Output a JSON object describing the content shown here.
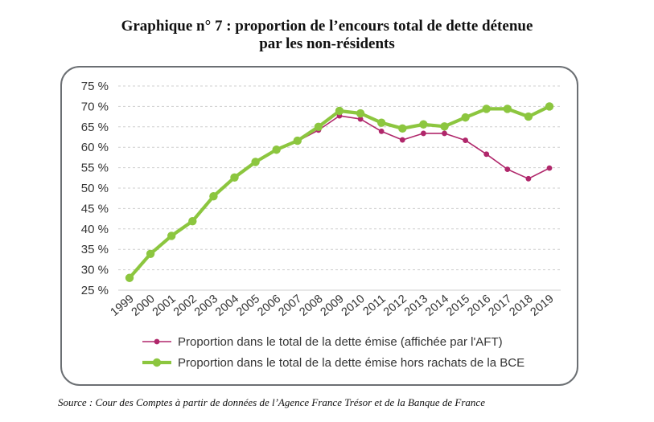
{
  "title_line1": "Graphique n° 7 : proportion de l’encours total de dette détenue",
  "title_line2": "par les non-résidents",
  "source": "Source : Cour des Comptes à partir de données de l’Agence France Trésor et de la Banque de France",
  "colors": {
    "series1": "#b0276b",
    "series2": "#8cc63f",
    "grid": "#cfcfcf",
    "text": "#333333"
  },
  "chart_data": {
    "type": "line",
    "x": [
      "1999",
      "2000",
      "2001",
      "2002",
      "2003",
      "2004",
      "2005",
      "2006",
      "2007",
      "2008",
      "2009",
      "2010",
      "2011",
      "2012",
      "2013",
      "2014",
      "2015",
      "2016",
      "2017",
      "2018",
      "2019"
    ],
    "ylim": [
      25,
      75
    ],
    "yticks": [
      25,
      30,
      35,
      40,
      45,
      50,
      55,
      60,
      65,
      70,
      75
    ],
    "ytick_labels": [
      "25 %",
      "30 %",
      "35 %",
      "40 %",
      "45 %",
      "50 %",
      "55 %",
      "60 %",
      "65 %",
      "70 %",
      "75 %"
    ],
    "grid": "horizontal-dashed",
    "legend_position": "bottom",
    "series": [
      {
        "name": "Proportion dans le total de la dette émise (affichée par l'AFT)",
        "values": [
          null,
          null,
          null,
          null,
          null,
          null,
          null,
          null,
          61.5,
          64.2,
          67.7,
          66.9,
          63.9,
          61.8,
          63.4,
          63.4,
          61.7,
          58.3,
          54.6,
          52.3,
          54.9
        ]
      },
      {
        "name": "Proportion dans le total de la dette émise hors rachats de la BCE",
        "values": [
          28.0,
          33.9,
          38.3,
          41.9,
          48.0,
          52.6,
          56.4,
          59.4,
          61.6,
          65.0,
          68.9,
          68.3,
          66.0,
          64.6,
          65.6,
          65.1,
          67.3,
          69.4,
          69.4,
          67.5,
          70.0
        ]
      }
    ]
  }
}
